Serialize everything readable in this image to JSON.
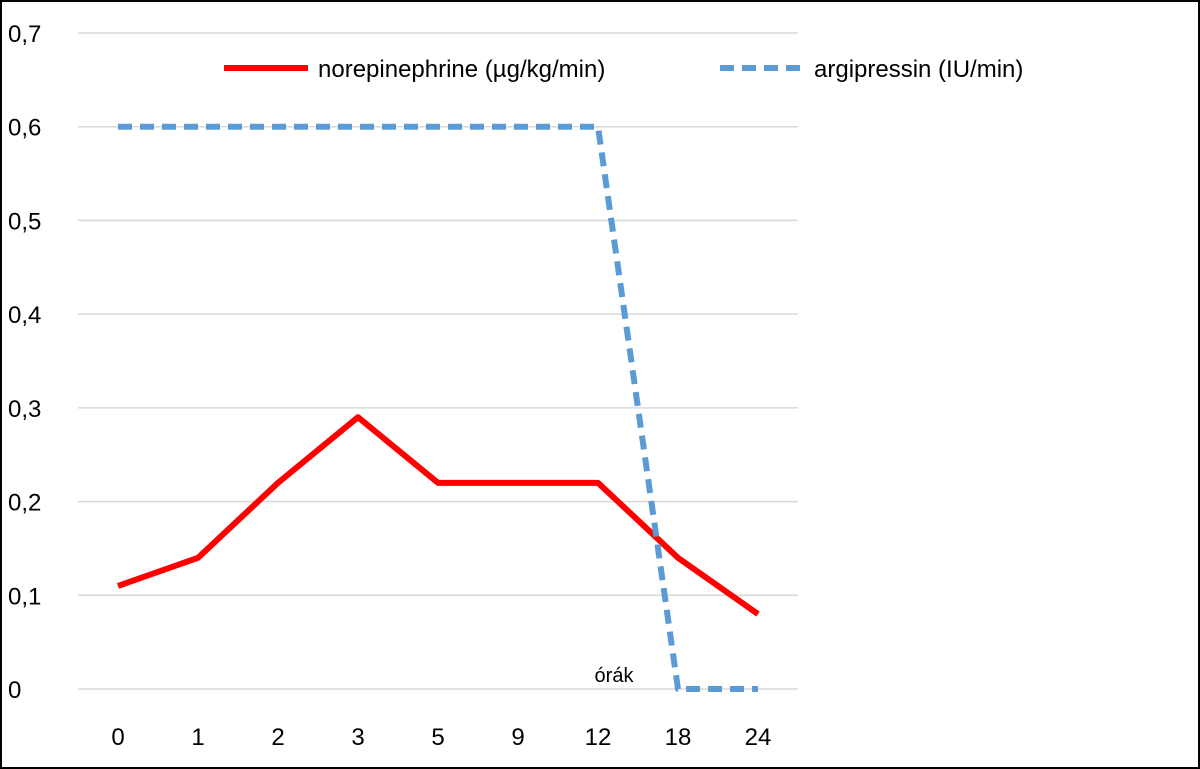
{
  "chart_data": {
    "type": "line",
    "categories": [
      "0",
      "1",
      "2",
      "3",
      "5",
      "9",
      "12",
      "18",
      "24"
    ],
    "ylim": [
      0,
      0.7
    ],
    "y_ticks": [
      "0",
      "0,1",
      "0,2",
      "0,3",
      "0,4",
      "0,5",
      "0,6",
      "0,7"
    ],
    "y_tick_values": [
      0,
      0.1,
      0.2,
      0.3,
      0.4,
      0.5,
      0.6,
      0.7
    ],
    "grid": "horizontal",
    "legend_position": "top",
    "annotation": "órák",
    "series": [
      {
        "name": "norepinephrine (µg/kg/min)",
        "values": [
          0.11,
          0.14,
          0.22,
          0.29,
          0.22,
          0.22,
          0.22,
          0.14,
          0.08
        ],
        "color": "#ff0000",
        "style": "solid"
      },
      {
        "name": "argipressin (IU/min)",
        "values": [
          0.6,
          0.6,
          0.6,
          0.6,
          0.6,
          0.6,
          0.6,
          0,
          0
        ],
        "color": "#5b9bd5",
        "style": "dashed"
      }
    ]
  }
}
